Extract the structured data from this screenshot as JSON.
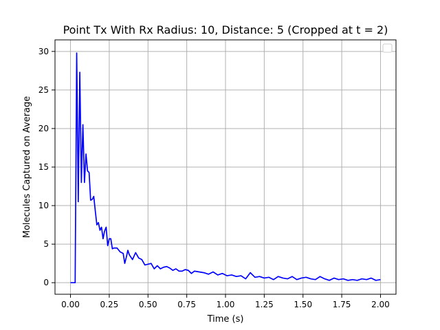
{
  "chart_data": {
    "type": "line",
    "title": "Point Tx With Rx Radius: 10, Distance: 5 (Cropped at t = 2)",
    "xlabel": "Time (s)",
    "ylabel": "Molecules Captured on Average",
    "xlim": [
      -0.1,
      2.1
    ],
    "ylim": [
      -1.5,
      31.5
    ],
    "xticks": [
      0.0,
      0.25,
      0.5,
      0.75,
      1.0,
      1.25,
      1.5,
      1.75,
      2.0
    ],
    "xtick_labels": [
      "0.00",
      "0.25",
      "0.50",
      "0.75",
      "1.00",
      "1.25",
      "1.50",
      "1.75",
      "2.00"
    ],
    "yticks": [
      0,
      5,
      10,
      15,
      20,
      25,
      30
    ],
    "ytick_labels": [
      "0",
      "5",
      "10",
      "15",
      "20",
      "25",
      "30"
    ],
    "grid": true,
    "legend": "top-right (empty)",
    "color": "#0000ff",
    "series": [
      {
        "x": [
          0.0,
          0.01,
          0.02,
          0.03,
          0.04,
          0.05,
          0.06,
          0.07,
          0.08,
          0.09,
          0.1,
          0.11,
          0.12,
          0.13,
          0.14,
          0.15,
          0.16,
          0.17,
          0.18,
          0.19,
          0.2,
          0.21,
          0.22,
          0.23,
          0.24,
          0.25,
          0.26,
          0.27,
          0.28,
          0.3,
          0.32,
          0.34,
          0.35,
          0.36,
          0.37,
          0.38,
          0.4,
          0.42,
          0.44,
          0.46,
          0.48,
          0.5,
          0.52,
          0.54,
          0.56,
          0.58,
          0.6,
          0.62,
          0.64,
          0.66,
          0.68,
          0.7,
          0.72,
          0.74,
          0.76,
          0.78,
          0.8,
          0.83,
          0.86,
          0.89,
          0.92,
          0.95,
          0.98,
          1.01,
          1.04,
          1.07,
          1.1,
          1.13,
          1.16,
          1.19,
          1.22,
          1.25,
          1.28,
          1.31,
          1.34,
          1.37,
          1.4,
          1.43,
          1.46,
          1.49,
          1.52,
          1.55,
          1.58,
          1.61,
          1.64,
          1.67,
          1.7,
          1.73,
          1.76,
          1.79,
          1.82,
          1.85,
          1.88,
          1.91,
          1.94,
          1.97,
          2.0
        ],
        "y": [
          0.0,
          0.0,
          0.0,
          0.0,
          29.8,
          10.5,
          27.3,
          13.0,
          20.5,
          13.0,
          16.7,
          14.5,
          14.3,
          10.7,
          10.8,
          11.2,
          9.3,
          7.5,
          7.8,
          6.8,
          7.2,
          5.7,
          6.7,
          7.2,
          4.8,
          5.7,
          5.7,
          4.4,
          4.5,
          4.5,
          4.0,
          3.8,
          2.5,
          3.3,
          4.2,
          3.6,
          3.0,
          3.9,
          3.2,
          3.0,
          2.3,
          2.4,
          2.5,
          1.8,
          2.2,
          1.8,
          2.0,
          2.1,
          1.9,
          1.6,
          1.8,
          1.5,
          1.5,
          1.7,
          1.6,
          1.2,
          1.5,
          1.4,
          1.3,
          1.1,
          1.4,
          1.0,
          1.2,
          0.9,
          1.0,
          0.8,
          0.9,
          0.5,
          1.3,
          0.7,
          0.8,
          0.6,
          0.7,
          0.4,
          0.8,
          0.6,
          0.5,
          0.8,
          0.4,
          0.6,
          0.7,
          0.5,
          0.4,
          0.8,
          0.5,
          0.3,
          0.6,
          0.4,
          0.5,
          0.3,
          0.4,
          0.3,
          0.5,
          0.4,
          0.6,
          0.3,
          0.4
        ]
      }
    ]
  }
}
